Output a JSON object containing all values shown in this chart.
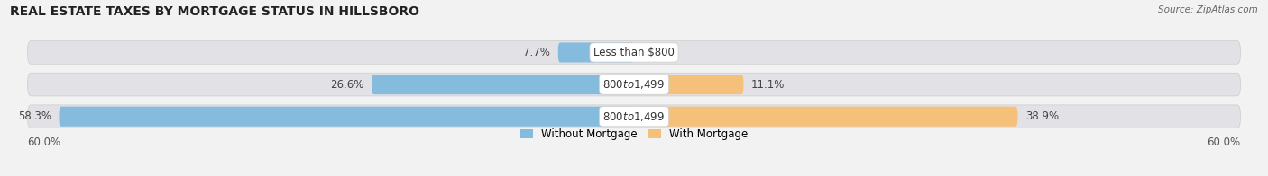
{
  "title": "REAL ESTATE TAXES BY MORTGAGE STATUS IN HILLSBORO",
  "source": "Source: ZipAtlas.com",
  "bars": [
    {
      "label": "Less than $800",
      "without_mortgage": 7.7,
      "with_mortgage": 0.0
    },
    {
      "label": "$800 to $1,499",
      "without_mortgage": 26.6,
      "with_mortgage": 11.1
    },
    {
      "label": "$800 to $1,499",
      "without_mortgage": 58.3,
      "with_mortgage": 38.9
    }
  ],
  "xlim": 60.0,
  "color_without": "#85bcde",
  "color_with": "#f5c07a",
  "bg_color": "#f2f2f2",
  "bar_bg_color": "#e2e2e6",
  "bar_height": 0.62,
  "legend_labels": [
    "Without Mortgage",
    "With Mortgage"
  ],
  "value_fontsize": 8.5,
  "label_fontsize": 8.5,
  "title_fontsize": 10,
  "source_fontsize": 7.5
}
